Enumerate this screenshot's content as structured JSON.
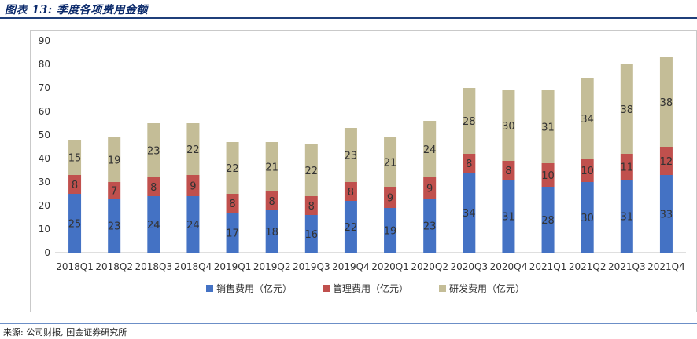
{
  "figure_title": "图表 13: 季度各项费用金额",
  "source": "来源: 公司财报, 国金证券研究所",
  "chart_data": {
    "type": "bar",
    "stacked": true,
    "categories": [
      "2018Q1",
      "2018Q2",
      "2018Q3",
      "2018Q4",
      "2019Q1",
      "2019Q2",
      "2019Q3",
      "2019Q4",
      "2020Q1",
      "2020Q2",
      "2020Q3",
      "2020Q4",
      "2021Q1",
      "2021Q2",
      "2021Q3",
      "2021Q4"
    ],
    "series": [
      {
        "name": "销售费用（亿元）",
        "color": "#4472c4",
        "values": [
          25,
          23,
          24,
          24,
          17,
          18,
          16,
          22,
          19,
          23,
          34,
          31,
          28,
          30,
          31,
          33
        ]
      },
      {
        "name": "管理费用（亿元）",
        "color": "#c0504d",
        "values": [
          8,
          7,
          8,
          9,
          8,
          8,
          8,
          8,
          9,
          9,
          8,
          8,
          10,
          10,
          11,
          12
        ]
      },
      {
        "name": "研发费用（亿元）",
        "color": "#c4bd97",
        "values": [
          15,
          19,
          23,
          22,
          22,
          21,
          22,
          23,
          21,
          24,
          28,
          30,
          31,
          34,
          38,
          38
        ]
      }
    ],
    "ylim": [
      0,
      90
    ],
    "yticks": [
      0,
      10,
      20,
      30,
      40,
      50,
      60,
      70,
      80,
      90
    ],
    "grid": false,
    "legend_position": "bottom"
  }
}
